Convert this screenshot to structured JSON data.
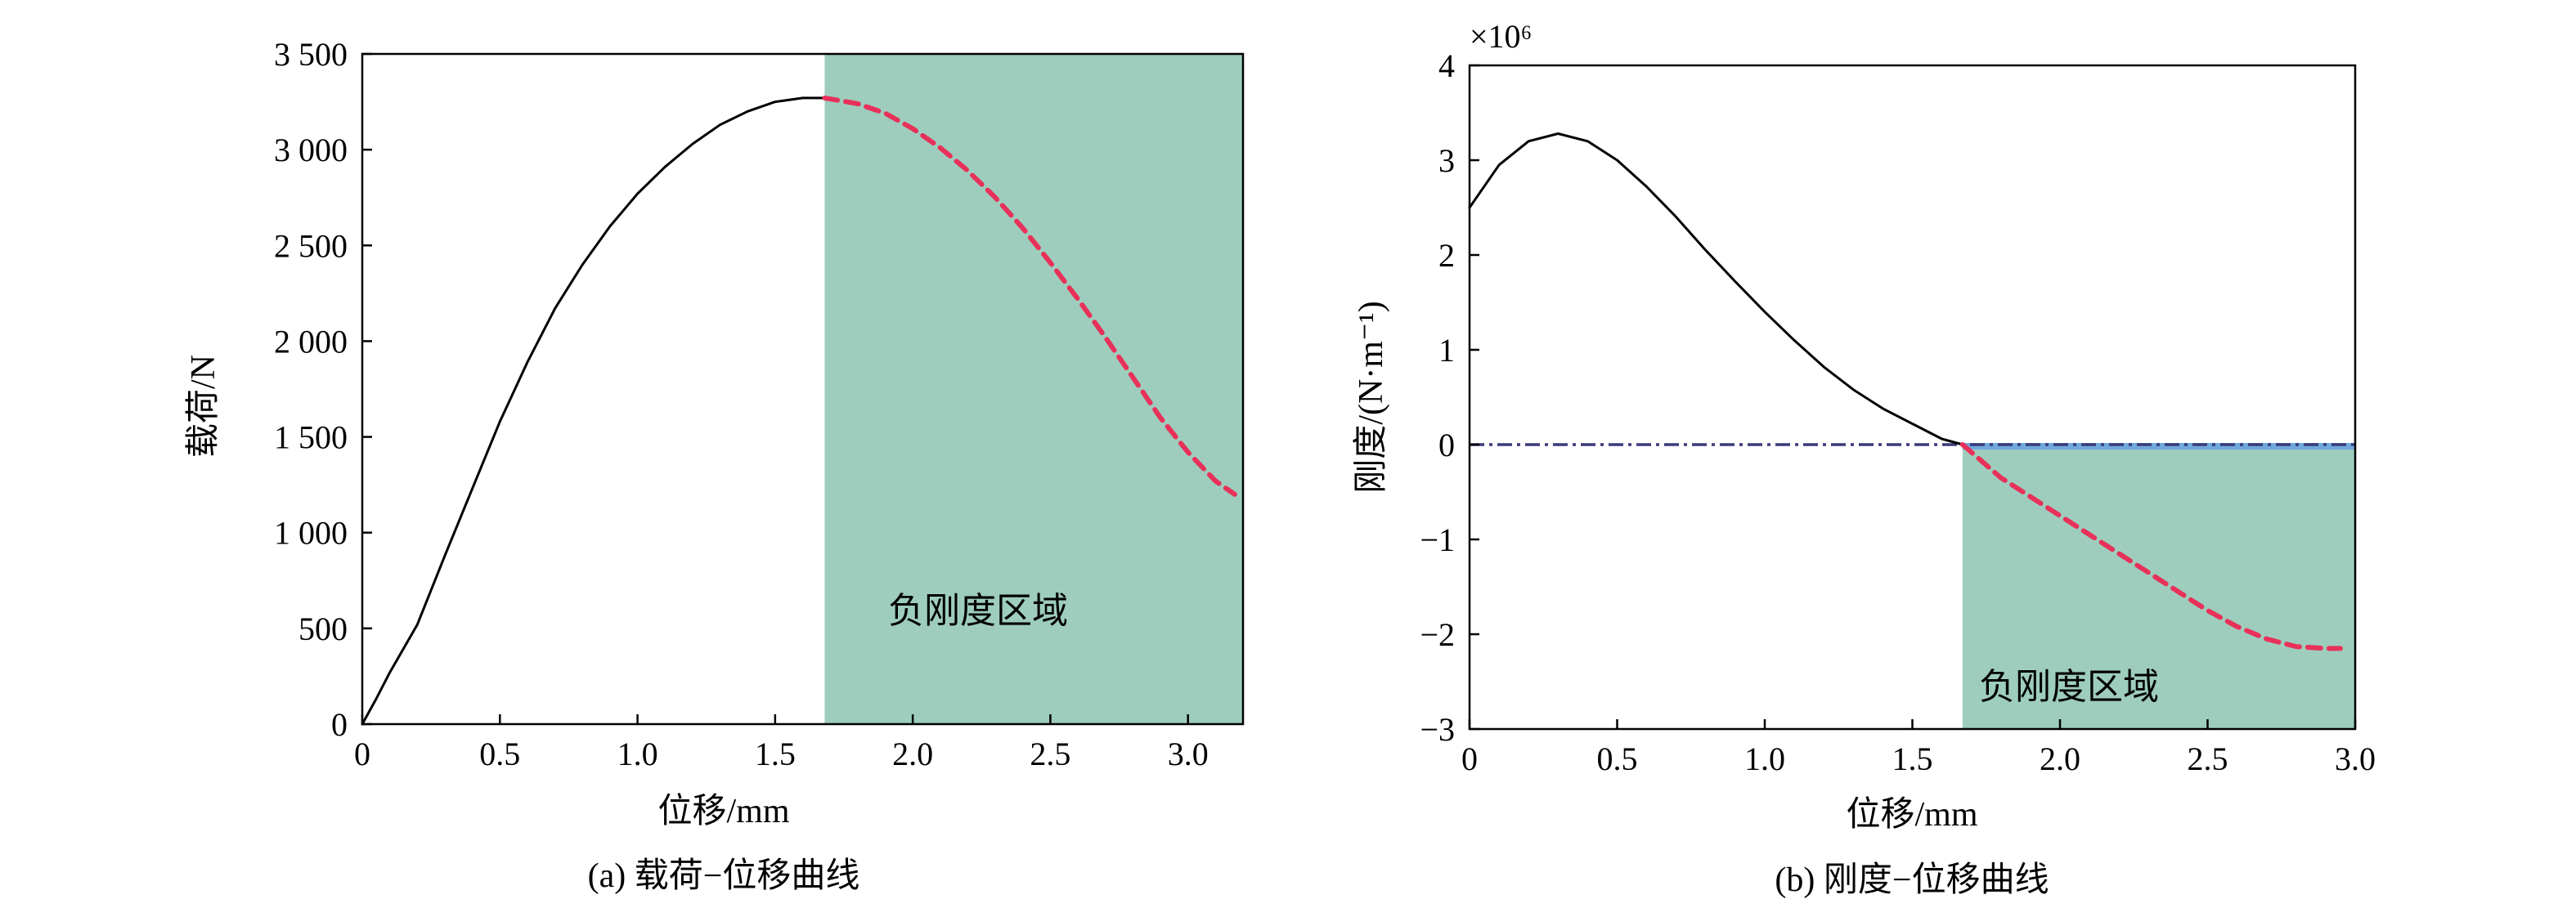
{
  "chart_data": [
    {
      "type": "line",
      "caption": "(a) 载荷−位移曲线",
      "xlabel": "位移/mm",
      "ylabel": "载荷/N",
      "xlim": [
        0,
        3.2
      ],
      "ylim": [
        0,
        3500
      ],
      "xticks": [
        0,
        0.5,
        1.0,
        1.5,
        2.0,
        2.5,
        3.0
      ],
      "xtick_labels": [
        "0",
        "0.5",
        "1.0",
        "1.5",
        "2.0",
        "2.5",
        "3.0"
      ],
      "yticks": [
        0,
        500,
        1000,
        1500,
        2000,
        2500,
        3000,
        3500
      ],
      "ytick_labels": [
        "0",
        "500",
        "1 000",
        "1 500",
        "2 000",
        "2 500",
        "3 000",
        "3 500"
      ],
      "region": {
        "label": "负刚度区域",
        "x_start": 1.68,
        "x_end": 3.2,
        "color": "#9ecdbd"
      },
      "series": [
        {
          "style": "solid",
          "color": "#000000",
          "x": [
            0,
            0.05,
            0.1,
            0.2,
            0.3,
            0.4,
            0.5,
            0.6,
            0.7,
            0.8,
            0.9,
            1.0,
            1.1,
            1.2,
            1.3,
            1.4,
            1.5,
            1.6,
            1.68
          ],
          "y": [
            0,
            130,
            270,
            520,
            880,
            1230,
            1580,
            1890,
            2170,
            2400,
            2600,
            2770,
            2910,
            3030,
            3130,
            3200,
            3250,
            3270,
            3270
          ]
        },
        {
          "style": "dashed",
          "color": "#e8315a",
          "x": [
            1.68,
            1.8,
            1.9,
            2.0,
            2.1,
            2.2,
            2.3,
            2.4,
            2.5,
            2.6,
            2.7,
            2.8,
            2.9,
            3.0,
            3.1,
            3.17
          ],
          "y": [
            3270,
            3240,
            3190,
            3110,
            3010,
            2890,
            2750,
            2590,
            2410,
            2220,
            2020,
            1810,
            1600,
            1420,
            1270,
            1200
          ]
        }
      ]
    },
    {
      "type": "line",
      "caption": "(b) 刚度−位移曲线",
      "xlabel": "位移/mm",
      "ylabel": "刚度/(N·m⁻¹)",
      "multiplier": "×10⁶",
      "xlim": [
        0,
        3.0
      ],
      "ylim": [
        -3,
        4
      ],
      "xticks": [
        0,
        0.5,
        1.0,
        1.5,
        2.0,
        2.5,
        3.0
      ],
      "xtick_labels": [
        "0",
        "0.5",
        "1.0",
        "1.5",
        "2.0",
        "2.5",
        "3.0"
      ],
      "yticks": [
        -3,
        -2,
        -1,
        0,
        1,
        2,
        3,
        4
      ],
      "ytick_labels": [
        "−3",
        "−2",
        "−1",
        "0",
        "1",
        "2",
        "3",
        "4"
      ],
      "region": {
        "label": "负刚度区域",
        "x_start": 1.67,
        "x_end": 3.0,
        "color": "#9ecdbd"
      },
      "zero_line": {
        "y": 0,
        "style": "dash-dot",
        "color": "#3a3a7a",
        "highlight_color": "#6fa8dc"
      },
      "series": [
        {
          "style": "solid",
          "color": "#000000",
          "x": [
            0,
            0.1,
            0.2,
            0.3,
            0.4,
            0.5,
            0.6,
            0.7,
            0.8,
            0.9,
            1.0,
            1.1,
            1.2,
            1.3,
            1.4,
            1.5,
            1.6,
            1.67
          ],
          "y": [
            2.5,
            2.95,
            3.2,
            3.28,
            3.2,
            3.0,
            2.72,
            2.4,
            2.05,
            1.72,
            1.4,
            1.1,
            0.82,
            0.58,
            0.38,
            0.22,
            0.06,
            0
          ]
        },
        {
          "style": "dashed",
          "color": "#e8315a",
          "x": [
            1.67,
            1.8,
            1.9,
            2.0,
            2.1,
            2.2,
            2.3,
            2.4,
            2.5,
            2.6,
            2.7,
            2.8,
            2.9,
            2.95
          ],
          "y": [
            0,
            -0.35,
            -0.55,
            -0.75,
            -0.95,
            -1.15,
            -1.35,
            -1.55,
            -1.75,
            -1.92,
            -2.05,
            -2.13,
            -2.15,
            -2.15
          ]
        }
      ]
    }
  ]
}
